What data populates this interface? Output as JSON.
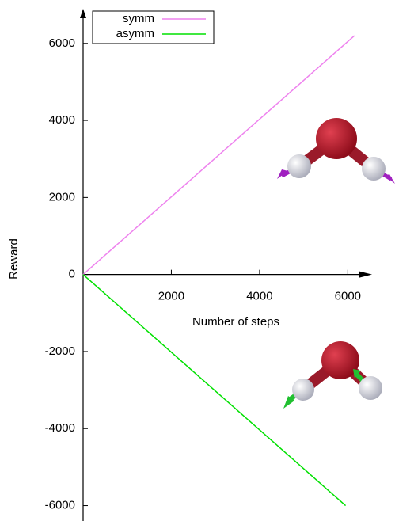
{
  "chart_data": {
    "type": "line",
    "xlabel": "Number of steps",
    "ylabel": "Reward",
    "series": [
      {
        "name": "symm",
        "color": "#ee82ee",
        "x": [
          0,
          6150
        ],
        "values": [
          0,
          6200
        ]
      },
      {
        "name": "asymm",
        "color": "#00e000",
        "x": [
          0,
          5950
        ],
        "values": [
          0,
          -6000
        ]
      }
    ],
    "xlim": [
      0,
      6550
    ],
    "ylim": [
      -6400,
      6900
    ],
    "xticks": [
      2000,
      4000,
      6000
    ],
    "yticks": [
      -6000,
      -4000,
      -2000,
      0,
      2000,
      4000,
      6000
    ],
    "legend": "upper left"
  }
}
